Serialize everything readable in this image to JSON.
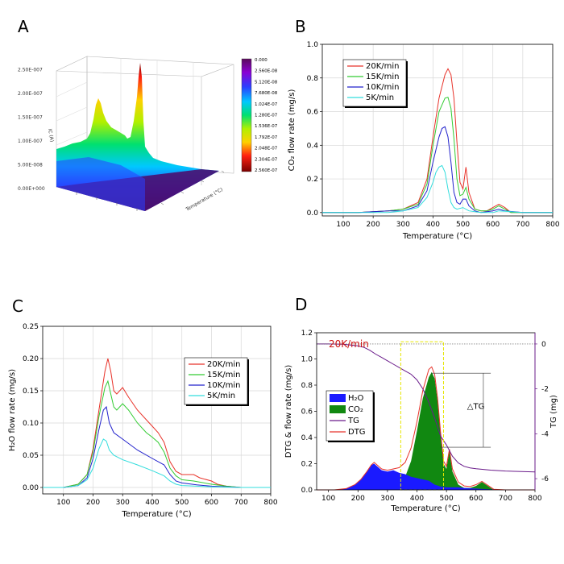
{
  "panels": {
    "A": {
      "label": "A"
    },
    "B": {
      "label": "B"
    },
    "C": {
      "label": "C"
    },
    "D": {
      "label": "D"
    }
  },
  "chart_data": [
    {
      "id": "A",
      "type": "heatmap",
      "zlabel": "IC (A)",
      "xlabel": "Temperature (°C)",
      "ztick_labels": [
        "0.00E+000",
        "5.00E-008",
        "1.00E-007",
        "1.50E-007",
        "2.00E-007",
        "2.50E-007"
      ],
      "colorbar_labels": [
        "0.000",
        "2.560E-08",
        "5.120E-08",
        "7.680E-08",
        "1.024E-07",
        "1.280E-07",
        "1.536E-07",
        "1.792E-07",
        "2.048E-07",
        "2.304E-07",
        "2.560E-07"
      ]
    },
    {
      "id": "B",
      "type": "line",
      "xlabel": "Temperature (°C)",
      "ylabel": "CO₂ flow rate (mg/s)",
      "xlim": [
        30,
        800
      ],
      "ylim": [
        -0.02,
        1.0
      ],
      "xticks": [
        100,
        200,
        300,
        400,
        500,
        600,
        700,
        800
      ],
      "yticks": [
        0.0,
        0.2,
        0.4,
        0.6,
        0.8,
        1.0
      ],
      "grid": true,
      "legend": "top-left",
      "series": [
        {
          "name": "20K/min",
          "color": "#e8332a",
          "x": [
            30,
            150,
            250,
            300,
            350,
            380,
            400,
            420,
            440,
            450,
            460,
            470,
            480,
            490,
            500,
            510,
            520,
            540,
            560,
            580,
            600,
            620,
            640,
            660,
            700,
            800
          ],
          "y": [
            0.0,
            0.0,
            0.01,
            0.02,
            0.06,
            0.2,
            0.45,
            0.68,
            0.82,
            0.855,
            0.82,
            0.68,
            0.42,
            0.18,
            0.14,
            0.27,
            0.12,
            0.02,
            0.01,
            0.01,
            0.03,
            0.05,
            0.03,
            0.0,
            0.0,
            0.0
          ]
        },
        {
          "name": "15K/min",
          "color": "#33cc33",
          "x": [
            30,
            150,
            250,
            300,
            350,
            380,
            400,
            420,
            440,
            450,
            460,
            470,
            480,
            490,
            500,
            510,
            520,
            540,
            560,
            580,
            600,
            620,
            640,
            660,
            700,
            800
          ],
          "y": [
            0.0,
            0.0,
            0.01,
            0.02,
            0.05,
            0.17,
            0.4,
            0.6,
            0.68,
            0.685,
            0.62,
            0.44,
            0.2,
            0.1,
            0.11,
            0.15,
            0.08,
            0.02,
            0.01,
            0.01,
            0.02,
            0.04,
            0.02,
            0.0,
            0.0,
            0.0
          ]
        },
        {
          "name": "10K/min",
          "color": "#2222cc",
          "x": [
            30,
            150,
            250,
            300,
            350,
            380,
            400,
            420,
            430,
            440,
            450,
            460,
            470,
            480,
            490,
            500,
            510,
            520,
            540,
            560,
            600,
            620,
            640,
            700,
            800
          ],
          "y": [
            0.0,
            0.0,
            0.01,
            0.01,
            0.04,
            0.13,
            0.3,
            0.45,
            0.5,
            0.51,
            0.45,
            0.3,
            0.12,
            0.06,
            0.05,
            0.08,
            0.08,
            0.04,
            0.01,
            0.0,
            0.01,
            0.02,
            0.01,
            0.0,
            0.0
          ]
        },
        {
          "name": "5K/min",
          "color": "#33dddd",
          "x": [
            30,
            150,
            250,
            300,
            350,
            380,
            400,
            410,
            420,
            430,
            440,
            450,
            460,
            470,
            480,
            500,
            520,
            560,
            600,
            620,
            700,
            800
          ],
          "y": [
            0.0,
            0.0,
            0.0,
            0.01,
            0.03,
            0.09,
            0.18,
            0.24,
            0.27,
            0.28,
            0.24,
            0.14,
            0.06,
            0.03,
            0.02,
            0.03,
            0.01,
            0.0,
            0.0,
            0.01,
            0.0,
            0.0
          ]
        }
      ]
    },
    {
      "id": "C",
      "type": "line",
      "xlabel": "Temperature (°C)",
      "ylabel": "H₂O flow rate (mg/s)",
      "xlim": [
        30,
        800
      ],
      "ylim": [
        -0.01,
        0.25
      ],
      "xticks": [
        100,
        200,
        300,
        400,
        500,
        600,
        700,
        800
      ],
      "yticks": [
        0.0,
        0.05,
        0.1,
        0.15,
        0.2,
        0.25
      ],
      "ytick_labels": [
        "0.00",
        "0.05",
        "0.10",
        "0.15",
        "0.20",
        "0.25"
      ],
      "grid": true,
      "legend": "top-right",
      "series": [
        {
          "name": "20K/min",
          "color": "#e8332a",
          "x": [
            30,
            100,
            150,
            180,
            200,
            220,
            240,
            250,
            260,
            270,
            280,
            300,
            320,
            350,
            380,
            400,
            420,
            440,
            460,
            480,
            500,
            520,
            540,
            560,
            600,
            620,
            650,
            700,
            800
          ],
          "y": [
            0.0,
            0.0,
            0.005,
            0.02,
            0.06,
            0.12,
            0.18,
            0.2,
            0.18,
            0.15,
            0.145,
            0.155,
            0.14,
            0.12,
            0.105,
            0.095,
            0.085,
            0.07,
            0.04,
            0.025,
            0.02,
            0.02,
            0.02,
            0.015,
            0.01,
            0.005,
            0.002,
            0.0,
            0.0
          ]
        },
        {
          "name": "15K/min",
          "color": "#33cc33",
          "x": [
            30,
            100,
            150,
            180,
            200,
            220,
            240,
            250,
            260,
            270,
            280,
            300,
            320,
            350,
            380,
            400,
            420,
            440,
            460,
            480,
            500,
            540,
            600,
            650,
            700,
            800
          ],
          "y": [
            0.0,
            0.0,
            0.005,
            0.02,
            0.055,
            0.11,
            0.155,
            0.165,
            0.145,
            0.125,
            0.12,
            0.13,
            0.12,
            0.1,
            0.085,
            0.078,
            0.07,
            0.055,
            0.03,
            0.018,
            0.012,
            0.01,
            0.005,
            0.002,
            0.0,
            0.0
          ]
        },
        {
          "name": "10K/min",
          "color": "#2222cc",
          "x": [
            30,
            100,
            150,
            180,
            200,
            220,
            235,
            245,
            255,
            270,
            300,
            350,
            400,
            440,
            460,
            480,
            500,
            550,
            600,
            700,
            800
          ],
          "y": [
            0.0,
            0.0,
            0.003,
            0.015,
            0.045,
            0.09,
            0.12,
            0.125,
            0.1,
            0.085,
            0.075,
            0.058,
            0.045,
            0.035,
            0.02,
            0.01,
            0.007,
            0.004,
            0.002,
            0.0,
            0.0
          ]
        },
        {
          "name": "5K/min",
          "color": "#33dddd",
          "x": [
            30,
            100,
            150,
            180,
            200,
            220,
            235,
            245,
            255,
            270,
            300,
            350,
            400,
            440,
            460,
            480,
            500,
            550,
            600,
            700,
            800
          ],
          "y": [
            0.0,
            0.0,
            0.003,
            0.012,
            0.03,
            0.06,
            0.075,
            0.072,
            0.058,
            0.05,
            0.043,
            0.035,
            0.026,
            0.018,
            0.01,
            0.005,
            0.003,
            0.002,
            0.001,
            0.0,
            0.0
          ]
        }
      ]
    },
    {
      "id": "D",
      "type": "area",
      "annotation": "20K/min",
      "xlabel": "Temperature (°C)",
      "ylabel": "DTG & flow rate (mg/s)",
      "ylabel_right": "TG (mg)",
      "delta_label": "△TG",
      "xlim": [
        60,
        800
      ],
      "ylim": [
        0,
        1.2
      ],
      "ylim_right": [
        -6.5,
        0.5
      ],
      "xticks": [
        100,
        200,
        300,
        400,
        500,
        600,
        700,
        800
      ],
      "yticks": [
        0.0,
        0.2,
        0.4,
        0.6,
        0.8,
        1.0,
        1.2
      ],
      "yticks_right": [
        0,
        -2,
        -4,
        -6
      ],
      "legend": "left",
      "h2o": {
        "name": "H₂O",
        "color": "#1a1aff",
        "x": [
          60,
          120,
          160,
          190,
          210,
          230,
          245,
          255,
          265,
          280,
          300,
          320,
          340,
          360,
          380,
          400,
          420,
          440,
          460,
          480,
          500,
          520,
          540,
          560,
          600,
          640,
          700,
          800
        ],
        "y": [
          0.0,
          0.0,
          0.01,
          0.04,
          0.08,
          0.14,
          0.19,
          0.2,
          0.18,
          0.15,
          0.14,
          0.15,
          0.13,
          0.12,
          0.1,
          0.09,
          0.08,
          0.07,
          0.04,
          0.025,
          0.02,
          0.02,
          0.02,
          0.015,
          0.01,
          0.005,
          0.0,
          0.0
        ]
      },
      "co2": {
        "name": "CO₂",
        "color": "#118811",
        "x": [
          60,
          200,
          250,
          300,
          340,
          360,
          380,
          400,
          420,
          440,
          450,
          460,
          470,
          480,
          490,
          500,
          510,
          520,
          540,
          560,
          580,
          600,
          620,
          640,
          660,
          700,
          800
        ],
        "y": [
          0.0,
          0.0,
          0.01,
          0.02,
          0.05,
          0.1,
          0.22,
          0.45,
          0.7,
          0.86,
          0.9,
          0.85,
          0.68,
          0.42,
          0.2,
          0.16,
          0.3,
          0.14,
          0.04,
          0.015,
          0.015,
          0.03,
          0.06,
          0.03,
          0.0,
          0.0,
          0.0
        ]
      },
      "dtg": {
        "name": "DTG",
        "color": "#e8332a",
        "x": [
          60,
          120,
          160,
          190,
          210,
          230,
          245,
          255,
          265,
          280,
          300,
          320,
          340,
          360,
          380,
          400,
          420,
          440,
          450,
          460,
          470,
          480,
          490,
          500,
          510,
          520,
          540,
          560,
          580,
          600,
          620,
          640,
          660,
          700,
          800
        ],
        "y": [
          0.0,
          0.0,
          0.01,
          0.04,
          0.08,
          0.14,
          0.19,
          0.21,
          0.19,
          0.16,
          0.15,
          0.16,
          0.17,
          0.21,
          0.32,
          0.52,
          0.76,
          0.92,
          0.94,
          0.88,
          0.7,
          0.44,
          0.22,
          0.18,
          0.31,
          0.16,
          0.06,
          0.03,
          0.025,
          0.04,
          0.065,
          0.035,
          0.005,
          0.0,
          0.0
        ]
      },
      "tg": {
        "name": "TG",
        "color": "#6a1b8a",
        "x": [
          60,
          100,
          150,
          200,
          220,
          240,
          260,
          280,
          300,
          320,
          340,
          360,
          380,
          400,
          420,
          440,
          460,
          480,
          500,
          520,
          540,
          560,
          580,
          600,
          650,
          700,
          800
        ],
        "y": [
          0.0,
          0.0,
          -0.01,
          -0.08,
          -0.15,
          -0.28,
          -0.45,
          -0.6,
          -0.75,
          -0.9,
          -1.05,
          -1.2,
          -1.35,
          -1.6,
          -2.0,
          -2.6,
          -3.3,
          -4.1,
          -4.5,
          -5.0,
          -5.3,
          -5.45,
          -5.52,
          -5.56,
          -5.62,
          -5.66,
          -5.7
        ]
      }
    }
  ]
}
